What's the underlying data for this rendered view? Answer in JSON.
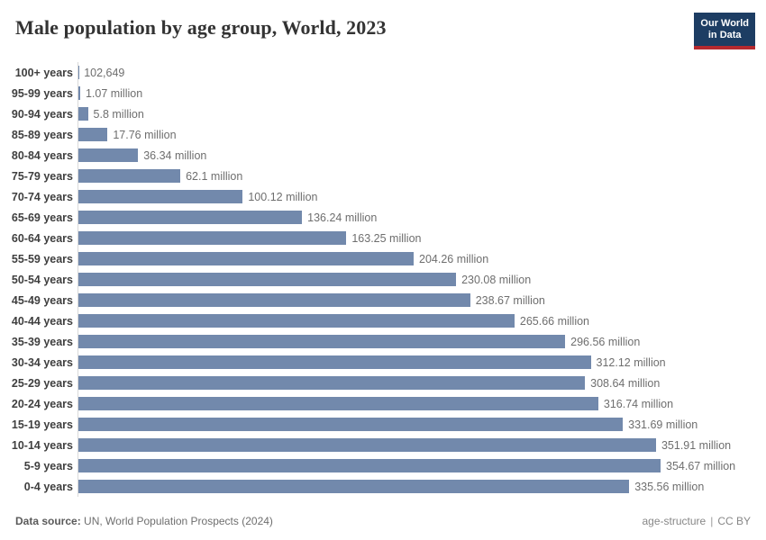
{
  "header": {
    "title": "Male population by age group, World, 2023",
    "logo": {
      "line1": "Our World",
      "line2": "in Data"
    }
  },
  "chart_data": {
    "type": "bar",
    "orientation": "horizontal",
    "title": "Male population by age group, World, 2023",
    "categories": [
      "100+ years",
      "95-99 years",
      "90-94 years",
      "85-89 years",
      "80-84 years",
      "75-79 years",
      "70-74 years",
      "65-69 years",
      "60-64 years",
      "55-59 years",
      "50-54 years",
      "45-49 years",
      "40-44 years",
      "35-39 years",
      "30-34 years",
      "25-29 years",
      "20-24 years",
      "15-19 years",
      "10-14 years",
      "5-9 years",
      "0-4 years"
    ],
    "values_millions": [
      0.102649,
      1.07,
      5.8,
      17.76,
      36.34,
      62.1,
      100.12,
      136.24,
      163.25,
      204.26,
      230.08,
      238.67,
      265.66,
      296.56,
      312.12,
      308.64,
      316.74,
      331.69,
      351.91,
      354.67,
      335.56
    ],
    "display_values": [
      "102,649",
      "1.07 million",
      "5.8 million",
      "17.76 million",
      "36.34 million",
      "62.1 million",
      "100.12 million",
      "136.24 million",
      "163.25 million",
      "204.26 million",
      "230.08 million",
      "238.67 million",
      "265.66 million",
      "296.56 million",
      "312.12 million",
      "308.64 million",
      "316.74 million",
      "331.69 million",
      "351.91 million",
      "354.67 million",
      "335.56 million"
    ],
    "xlim_millions": [
      0,
      354.67
    ],
    "grid": false,
    "legend": "none",
    "bar_color": "#7289ac",
    "axis_line_color": "#d9d9d9"
  },
  "footer": {
    "source_label": "Data source:",
    "source_value": " UN, World Population Prospects (2024)",
    "slug": "age-structure",
    "separator": "|",
    "license": "CC BY"
  }
}
